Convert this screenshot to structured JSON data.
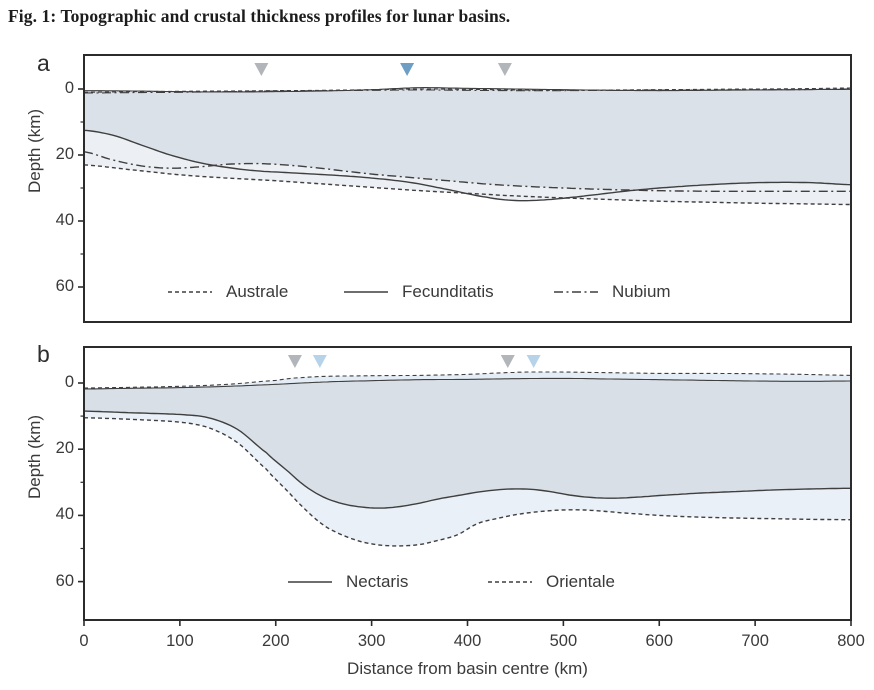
{
  "title": "Fig. 1: Topographic and crustal thickness profiles for lunar basins.",
  "x_axis": {
    "label": "Distance from basin centre (km)",
    "ticks": [
      0,
      100,
      200,
      300,
      400,
      500,
      600,
      700,
      800
    ]
  },
  "y_axis": {
    "label": "Depth (km)",
    "ticks": [
      0,
      20,
      40,
      60
    ],
    "minor_ticks": [
      10,
      30,
      50
    ]
  },
  "colors": {
    "crust_fill": "#dbe1e9",
    "inter_model_fill": "#eceff3",
    "crust_fill_b": "#d9dfe6",
    "deep_fill_b": "#e9f0f8",
    "surface_gap_fill_b": "#e4edf6",
    "line": "#3f3f3f",
    "border": "#2b2b2b",
    "marker_gray": "#b2b6ba",
    "marker_steel_blue": "#6f9ec4",
    "marker_light_blue": "#b6d3e9",
    "text": "#333333"
  },
  "chart_data": [
    {
      "type": "line",
      "panel": "a",
      "xlim_km": [
        0,
        800
      ],
      "depth_ticks_km": [
        0,
        20,
        40,
        60
      ],
      "series": [
        {
          "name": "Australe",
          "line_style": "dashed",
          "surface_km_depth": [
            [
              0,
              1.0
            ],
            [
              50,
              0.8
            ],
            [
              100,
              0.7
            ],
            [
              150,
              0.6
            ],
            [
              200,
              0.5
            ],
            [
              250,
              0.4
            ],
            [
              300,
              0.2
            ],
            [
              350,
              0.0
            ],
            [
              400,
              0.1
            ],
            [
              450,
              0.3
            ],
            [
              500,
              0.4
            ],
            [
              550,
              0.3
            ],
            [
              600,
              0.2
            ],
            [
              650,
              0.1
            ],
            [
              700,
              0.0
            ],
            [
              750,
              -0.1
            ],
            [
              800,
              -0.3
            ]
          ],
          "moho_km_depth": [
            [
              0,
              23
            ],
            [
              50,
              24.5
            ],
            [
              100,
              26
            ],
            [
              150,
              27
            ],
            [
              200,
              27.8
            ],
            [
              250,
              28.8
            ],
            [
              300,
              29.8
            ],
            [
              350,
              30.8
            ],
            [
              400,
              31.6
            ],
            [
              450,
              32.4
            ],
            [
              500,
              33
            ],
            [
              550,
              33.5
            ],
            [
              600,
              34
            ],
            [
              650,
              34.3
            ],
            [
              700,
              34.6
            ],
            [
              750,
              34.8
            ],
            [
              800,
              35
            ]
          ]
        },
        {
          "name": "Fecunditatis",
          "line_style": "solid",
          "surface_km_depth": [
            [
              0,
              0.5
            ],
            [
              50,
              0.6
            ],
            [
              100,
              0.8
            ],
            [
              150,
              0.9
            ],
            [
              200,
              0.8
            ],
            [
              250,
              0.6
            ],
            [
              300,
              0.2
            ],
            [
              350,
              -0.4
            ],
            [
              400,
              -0.2
            ],
            [
              450,
              0.0
            ],
            [
              500,
              0.2
            ],
            [
              550,
              0.4
            ],
            [
              600,
              0.5
            ],
            [
              650,
              0.4
            ],
            [
              700,
              0.3
            ],
            [
              750,
              0.2
            ],
            [
              800,
              0.1
            ]
          ],
          "moho_km_depth": [
            [
              0,
              12.5
            ],
            [
              30,
              14
            ],
            [
              60,
              17
            ],
            [
              90,
              20
            ],
            [
              120,
              22.3
            ],
            [
              150,
              23.8
            ],
            [
              180,
              24.8
            ],
            [
              210,
              25.3
            ],
            [
              240,
              25.8
            ],
            [
              270,
              26.3
            ],
            [
              300,
              27
            ],
            [
              340,
              28.3
            ],
            [
              380,
              30.5
            ],
            [
              420,
              32.8
            ],
            [
              450,
              33.8
            ],
            [
              480,
              33.6
            ],
            [
              510,
              32.8
            ],
            [
              540,
              31.8
            ],
            [
              570,
              30.8
            ],
            [
              600,
              30
            ],
            [
              640,
              29.2
            ],
            [
              680,
              28.6
            ],
            [
              720,
              28.3
            ],
            [
              760,
              28.4
            ],
            [
              800,
              29
            ]
          ]
        },
        {
          "name": "Nubium",
          "line_style": "dashdot",
          "surface_km_depth": [
            [
              0,
              1.2
            ],
            [
              50,
              1.1
            ],
            [
              100,
              1.0
            ],
            [
              150,
              0.8
            ],
            [
              200,
              0.6
            ],
            [
              250,
              0.5
            ],
            [
              300,
              0.4
            ],
            [
              350,
              0.3
            ],
            [
              400,
              0.4
            ],
            [
              450,
              0.5
            ],
            [
              500,
              0.5
            ],
            [
              550,
              0.4
            ],
            [
              600,
              0.3
            ],
            [
              650,
              0.3
            ],
            [
              700,
              0.2
            ],
            [
              750,
              0.2
            ],
            [
              800,
              0.0
            ]
          ],
          "moho_km_depth": [
            [
              0,
              19
            ],
            [
              30,
              21.5
            ],
            [
              60,
              23.3
            ],
            [
              90,
              24
            ],
            [
              120,
              23.6
            ],
            [
              150,
              22.8
            ],
            [
              180,
              22.6
            ],
            [
              210,
              23
            ],
            [
              240,
              23.8
            ],
            [
              270,
              24.8
            ],
            [
              300,
              25.8
            ],
            [
              340,
              26.8
            ],
            [
              380,
              27.8
            ],
            [
              420,
              28.8
            ],
            [
              460,
              29.5
            ],
            [
              500,
              30
            ],
            [
              540,
              30.4
            ],
            [
              580,
              30.7
            ],
            [
              620,
              30.9
            ],
            [
              660,
              31
            ],
            [
              700,
              31
            ],
            [
              750,
              31
            ],
            [
              800,
              31
            ]
          ]
        }
      ],
      "markers": [
        {
          "x_km": 185,
          "color": "marker_gray"
        },
        {
          "x_km": 337,
          "color": "marker_steel_blue"
        },
        {
          "x_km": 439,
          "color": "marker_gray"
        }
      ]
    },
    {
      "type": "line",
      "panel": "b",
      "xlim_km": [
        0,
        800
      ],
      "depth_ticks_km": [
        0,
        20,
        40,
        60
      ],
      "series": [
        {
          "name": "Nectaris",
          "line_style": "solid",
          "surface_km_depth": [
            [
              0,
              1.8
            ],
            [
              50,
              1.6
            ],
            [
              100,
              1.4
            ],
            [
              150,
              1.0
            ],
            [
              200,
              0.4
            ],
            [
              250,
              -0.3
            ],
            [
              300,
              -0.7
            ],
            [
              350,
              -1.0
            ],
            [
              400,
              -1.1
            ],
            [
              450,
              -1.3
            ],
            [
              500,
              -1.4
            ],
            [
              550,
              -1.2
            ],
            [
              600,
              -1.0
            ],
            [
              650,
              -0.8
            ],
            [
              700,
              -0.6
            ],
            [
              750,
              -0.5
            ],
            [
              800,
              -0.6
            ]
          ],
          "moho_km_depth": [
            [
              0,
              8.5
            ],
            [
              50,
              9.0
            ],
            [
              100,
              9.5
            ],
            [
              130,
              10.5
            ],
            [
              160,
              14
            ],
            [
              190,
              21
            ],
            [
              210,
              26
            ],
            [
              230,
              31
            ],
            [
              250,
              34.5
            ],
            [
              270,
              36.5
            ],
            [
              290,
              37.5
            ],
            [
              310,
              37.8
            ],
            [
              330,
              37.3
            ],
            [
              350,
              36.3
            ],
            [
              370,
              35
            ],
            [
              390,
              34
            ],
            [
              410,
              33
            ],
            [
              430,
              32.3
            ],
            [
              450,
              32
            ],
            [
              470,
              32.2
            ],
            [
              490,
              33
            ],
            [
              510,
              34
            ],
            [
              530,
              34.6
            ],
            [
              550,
              34.8
            ],
            [
              570,
              34.6
            ],
            [
              600,
              34
            ],
            [
              640,
              33.3
            ],
            [
              680,
              32.8
            ],
            [
              720,
              32.3
            ],
            [
              760,
              32
            ],
            [
              800,
              31.8
            ]
          ]
        },
        {
          "name": "Orientale",
          "line_style": "dashed",
          "surface_km_depth": [
            [
              0,
              1.5
            ],
            [
              50,
              1.3
            ],
            [
              100,
              1.0
            ],
            [
              150,
              0.4
            ],
            [
              200,
              -0.8
            ],
            [
              220,
              -1.5
            ],
            [
              250,
              -2.0
            ],
            [
              300,
              -2.2
            ],
            [
              350,
              -2.3
            ],
            [
              400,
              -2.6
            ],
            [
              430,
              -3.0
            ],
            [
              460,
              -3.3
            ],
            [
              500,
              -3.3
            ],
            [
              550,
              -3.1
            ],
            [
              600,
              -2.9
            ],
            [
              650,
              -2.9
            ],
            [
              700,
              -2.8
            ],
            [
              750,
              -2.6
            ],
            [
              800,
              -2.3
            ]
          ],
          "moho_km_depth": [
            [
              0,
              10.5
            ],
            [
              50,
              11
            ],
            [
              100,
              11.8
            ],
            [
              130,
              13.5
            ],
            [
              160,
              18
            ],
            [
              190,
              26
            ],
            [
              210,
              32
            ],
            [
              230,
              38
            ],
            [
              250,
              43
            ],
            [
              270,
              46
            ],
            [
              290,
              48
            ],
            [
              310,
              49
            ],
            [
              330,
              49.2
            ],
            [
              350,
              48.8
            ],
            [
              370,
              47.5
            ],
            [
              390,
              45.8
            ],
            [
              410,
              42.5
            ],
            [
              430,
              41
            ],
            [
              450,
              39.8
            ],
            [
              470,
              39
            ],
            [
              490,
              38.5
            ],
            [
              510,
              38.3
            ],
            [
              530,
              38.5
            ],
            [
              560,
              39.2
            ],
            [
              600,
              40
            ],
            [
              640,
              40.5
            ],
            [
              680,
              40.8
            ],
            [
              720,
              41
            ],
            [
              760,
              41.2
            ],
            [
              800,
              41.3
            ]
          ]
        }
      ],
      "markers": [
        {
          "x_km": 220,
          "color": "marker_gray"
        },
        {
          "x_km": 246,
          "color": "marker_light_blue"
        },
        {
          "x_km": 442,
          "color": "marker_gray"
        },
        {
          "x_km": 469,
          "color": "marker_light_blue"
        }
      ]
    }
  ]
}
